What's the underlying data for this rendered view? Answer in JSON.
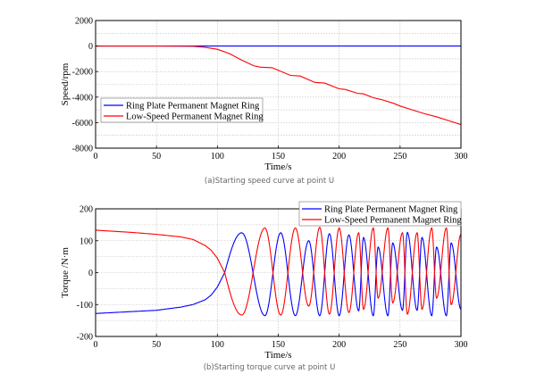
{
  "chart_data": [
    {
      "type": "line",
      "caption": "(a)Starting speed curve at point U",
      "xlabel": "Time/s",
      "ylabel": "Speed/rpm",
      "xlim": [
        0,
        300
      ],
      "ylim": [
        -8000,
        2000
      ],
      "xticks": [
        0,
        50,
        100,
        150,
        200,
        250,
        300
      ],
      "yticks": [
        2000,
        0,
        -2000,
        -4000,
        -6000,
        -8000
      ],
      "grid": true,
      "legend_placement": "center-left",
      "series": [
        {
          "name": "Ring Plate Permanent Magnet Ring",
          "color": "#0000ff",
          "x": [
            0,
            300
          ],
          "y": [
            0,
            0
          ]
        },
        {
          "name": "Low-Speed Permanent Magnet Ring",
          "color": "#ff0000",
          "x": [
            0,
            50,
            80,
            90,
            100,
            110,
            120,
            130,
            135,
            145,
            150,
            160,
            168,
            180,
            188,
            200,
            205,
            215,
            220,
            228,
            235,
            245,
            250,
            260,
            270,
            280,
            290,
            300
          ],
          "y": [
            0,
            0,
            -20,
            -100,
            -250,
            -600,
            -1100,
            -1550,
            -1650,
            -1700,
            -1900,
            -2300,
            -2350,
            -2850,
            -2900,
            -3350,
            -3400,
            -3700,
            -3750,
            -4050,
            -4200,
            -4500,
            -4700,
            -5000,
            -5300,
            -5550,
            -5850,
            -6150
          ]
        }
      ]
    },
    {
      "type": "line",
      "caption": "(b)Starting torque curve at point U",
      "xlabel": "Time/s",
      "ylabel": "Torque /N·m",
      "xlim": [
        0,
        300
      ],
      "ylim": [
        -200,
        200
      ],
      "xticks": [
        0,
        50,
        100,
        150,
        200,
        250,
        300
      ],
      "yticks": [
        200,
        100,
        0,
        -100,
        -200
      ],
      "grid": true,
      "legend_placement": "top-right",
      "series": [
        {
          "name": "Ring Plate Permanent Magnet Ring",
          "color": "#0000ff",
          "x": [
            0,
            30,
            50,
            70,
            80,
            90,
            95,
            100,
            106,
            120,
            139,
            152,
            164,
            175,
            184,
            192,
            200,
            208,
            216,
            220,
            228,
            232,
            240,
            244,
            252,
            256,
            264,
            268,
            276,
            280,
            288,
            292,
            300
          ],
          "y": [
            -128,
            -122,
            -118,
            -108,
            -100,
            -85,
            -70,
            -45,
            0,
            125,
            -135,
            125,
            -135,
            100,
            -135,
            122,
            -135,
            118,
            -120,
            110,
            -135,
            80,
            -135,
            93,
            -118,
            126,
            -118,
            110,
            -135,
            80,
            -135,
            93,
            -115
          ]
        },
        {
          "name": "Low-Speed Permanent Magnet Ring",
          "color": "#ff0000",
          "x": [
            0,
            30,
            50,
            70,
            80,
            90,
            95,
            100,
            106,
            120,
            139,
            152,
            164,
            175,
            184,
            192,
            200,
            208,
            216,
            220,
            228,
            232,
            240,
            244,
            252,
            256,
            264,
            268,
            276,
            280,
            288,
            292,
            300
          ],
          "y": [
            133,
            126,
            120,
            112,
            104,
            85,
            70,
            45,
            0,
            -133,
            140,
            -133,
            140,
            -105,
            142,
            -130,
            140,
            -125,
            125,
            -115,
            140,
            -80,
            140,
            -95,
            125,
            -130,
            125,
            -115,
            140,
            -80,
            140,
            -100,
            120
          ]
        }
      ]
    }
  ]
}
